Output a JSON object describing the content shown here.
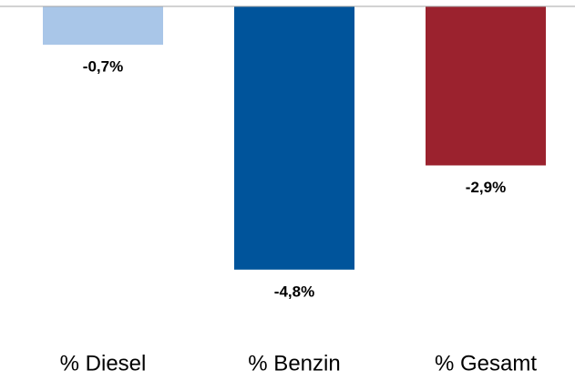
{
  "chart_data": {
    "type": "bar",
    "categories": [
      "% Diesel",
      "% Benzin",
      "% Gesamt"
    ],
    "values": [
      -0.7,
      -4.8,
      -2.9
    ],
    "value_labels": [
      "-0,7%",
      "-4,8%",
      "-2,9%"
    ],
    "colors": [
      "#a9c6e8",
      "#00549b",
      "#9b222e"
    ],
    "ylim": [
      -6,
      0
    ]
  }
}
